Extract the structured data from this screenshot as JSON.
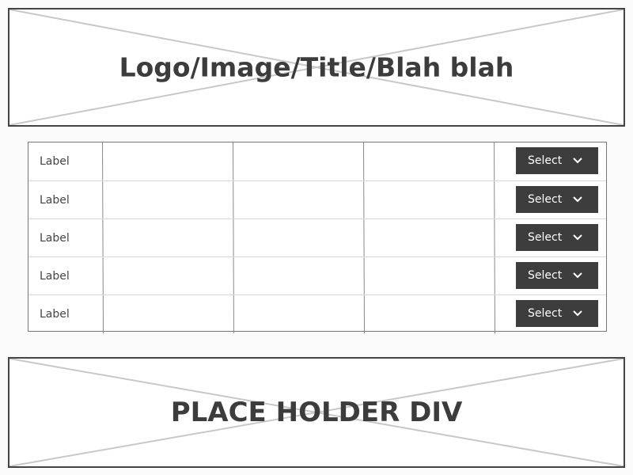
{
  "header_placeholder": {
    "text": "Logo/Image/Title/Blah blah",
    "icon": "placeholder-cross-icon"
  },
  "table": {
    "rows": [
      {
        "label": "Label",
        "select_label": "Select"
      },
      {
        "label": "Label",
        "select_label": "Select"
      },
      {
        "label": "Label",
        "select_label": "Select"
      },
      {
        "label": "Label",
        "select_label": "Select"
      },
      {
        "label": "Label",
        "select_label": "Select"
      }
    ],
    "dropdown_icon": "chevron-down-icon"
  },
  "footer_placeholder": {
    "text": "PLACE HOLDER DIV",
    "icon": "placeholder-cross-icon"
  },
  "colors": {
    "border": "#444444",
    "button_bg": "#3d3d3d",
    "button_text": "#ffffff",
    "cross_lines": "#c8c8c8",
    "text": "#3c3c3c"
  }
}
